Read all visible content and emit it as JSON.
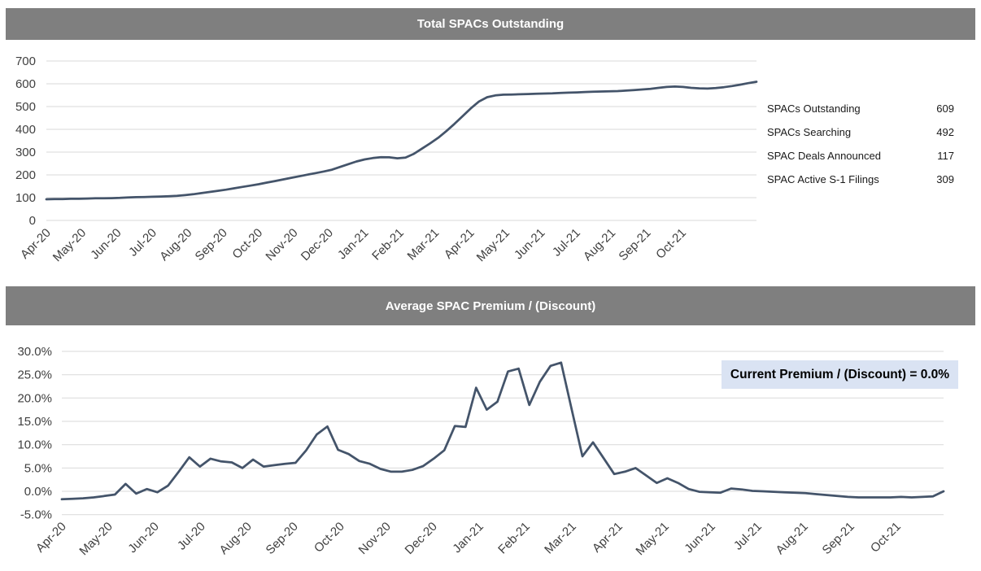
{
  "colors": {
    "header_bg": "#7f7f7f",
    "header_text": "#ffffff",
    "line": "#44546a",
    "gridline": "#d9d9d9",
    "axis_text": "#404040",
    "stats_text": "#1a1a1a",
    "annotation_bg": "#dae3f3",
    "annotation_text": "#000000"
  },
  "chart_data": [
    {
      "type": "line",
      "title": "Total SPACs Outstanding",
      "x_frequency": "weekly",
      "categories": [
        "Apr-20",
        "May-20",
        "Jun-20",
        "Jul-20",
        "Aug-20",
        "Sep-20",
        "Oct-20",
        "Nov-20",
        "Dec-20",
        "Jan-21",
        "Feb-21",
        "Mar-21",
        "Apr-21",
        "May-21",
        "Jun-21",
        "Jul-21",
        "Aug-21",
        "Sep-21",
        "Oct-21"
      ],
      "values": [
        93,
        94,
        94,
        95,
        95,
        96,
        97,
        97,
        98,
        99,
        101,
        102,
        103,
        104,
        105,
        106,
        108,
        111,
        115,
        120,
        125,
        130,
        135,
        141,
        147,
        153,
        159,
        166,
        173,
        180,
        187,
        194,
        201,
        208,
        215,
        223,
        235,
        247,
        259,
        268,
        274,
        278,
        277,
        273,
        276,
        292,
        315,
        338,
        363,
        392,
        424,
        458,
        492,
        522,
        541,
        549,
        552,
        553,
        554,
        555,
        556,
        557,
        558,
        560,
        561,
        562,
        564,
        565,
        566,
        567,
        568,
        570,
        572,
        575,
        578,
        582,
        586,
        588,
        586,
        582,
        580,
        579,
        581,
        585,
        590,
        596,
        603,
        609
      ],
      "ylim": [
        0,
        700
      ],
      "ytick_labels": [
        "700",
        "600",
        "500",
        "400",
        "300",
        "200",
        "100",
        "0"
      ],
      "grid": "horizontal",
      "legend": "none",
      "final_value": 609,
      "line_color": "#44546a"
    },
    {
      "type": "line",
      "title": "Average SPAC Premium / (Discount)",
      "x_frequency": "weekly",
      "categories": [
        "Apr-20",
        "May-20",
        "Jun-20",
        "Jul-20",
        "Aug-20",
        "Sep-20",
        "Oct-20",
        "Nov-20",
        "Dec-20",
        "Jan-21",
        "Feb-21",
        "Mar-21",
        "Apr-21",
        "May-21",
        "Jun-21",
        "Jul-21",
        "Aug-21",
        "Sep-21",
        "Oct-21"
      ],
      "values": [
        -1.7,
        -1.6,
        -1.5,
        -1.3,
        -1.0,
        -0.7,
        1.6,
        -0.5,
        0.5,
        -0.2,
        1.2,
        4.2,
        7.3,
        5.3,
        7.0,
        6.4,
        6.2,
        5.0,
        6.8,
        5.3,
        5.6,
        5.9,
        6.1,
        8.8,
        12.2,
        13.9,
        8.9,
        8.0,
        6.5,
        5.9,
        4.8,
        4.2,
        4.2,
        4.6,
        5.4,
        7.0,
        8.8,
        14.0,
        13.8,
        22.2,
        17.5,
        19.2,
        25.7,
        26.3,
        18.5,
        23.5,
        26.9,
        27.6,
        17.5,
        7.5,
        10.5,
        7.1,
        3.7,
        4.2,
        5.0,
        3.4,
        1.8,
        2.8,
        1.8,
        0.5,
        -0.1,
        -0.2,
        -0.3,
        0.6,
        0.4,
        0.1,
        0.0,
        -0.1,
        -0.2,
        -0.3,
        -0.4,
        -0.6,
        -0.8,
        -1.0,
        -1.2,
        -1.3,
        -1.3,
        -1.3,
        -1.3,
        -1.2,
        -1.3,
        -1.2,
        -1.1,
        0.0
      ],
      "ylim": [
        -5,
        30
      ],
      "ytick_labels": [
        "30.0%",
        "25.0%",
        "20.0%",
        "15.0%",
        "10.0%",
        "5.0%",
        "0.0%",
        "-5.0%"
      ],
      "grid": "horizontal",
      "legend": "none",
      "annotation": "Current Premium / (Discount) = 0.0%",
      "current_value_pct": 0.0,
      "line_color": "#44546a"
    }
  ],
  "stats_panel": {
    "rows": [
      {
        "label": "SPACs Outstanding",
        "value": "609"
      },
      {
        "label": "SPACs Searching",
        "value": "492"
      },
      {
        "label": "SPAC Deals Announced",
        "value": "117"
      },
      {
        "label": "SPAC Active S-1 Filings",
        "value": "309"
      }
    ]
  }
}
